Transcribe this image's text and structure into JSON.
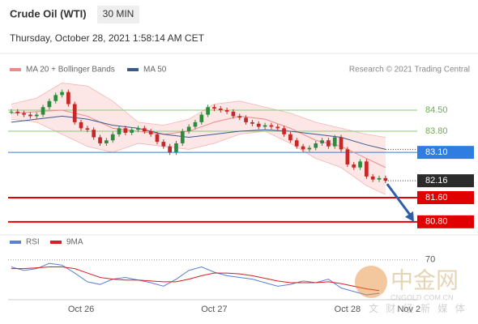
{
  "watermark": {
    "name": "中金网",
    "site": "CNGOLD.COM.CN",
    "slogan": "文 财 经 新 媒 体"
  },
  "chart_data": [
    {
      "type": "candlestick",
      "title": "Crude Oil (WTI)",
      "interval": "30 MIN",
      "subtitle": "Thursday, October 28, 2021 1:58:14 AM CET",
      "credit": "Research © 2021 Trading Central",
      "up_color": "#2e8b3e",
      "down_color": "#c62828",
      "xlim": [
        -0.5,
        64
      ],
      "xticks": [
        {
          "value": 11,
          "label": "Oct 26"
        },
        {
          "value": 32,
          "label": "Oct 27"
        },
        {
          "value": 53,
          "label": "Oct 28"
        },
        {
          "value": 62.7,
          "label": "Nov 2"
        }
      ],
      "ylim": [
        80.5,
        85.6
      ],
      "close": [
        84.45,
        84.4,
        84.35,
        84.3,
        84.35,
        84.6,
        84.8,
        85.0,
        85.1,
        84.7,
        84.1,
        83.9,
        83.85,
        83.6,
        83.4,
        83.5,
        83.7,
        83.9,
        83.75,
        83.85,
        83.9,
        83.8,
        83.7,
        83.45,
        83.3,
        83.1,
        83.4,
        83.8,
        83.95,
        84.1,
        84.35,
        84.6,
        84.55,
        84.5,
        84.45,
        84.3,
        84.25,
        84.1,
        84.05,
        83.95,
        84.0,
        83.95,
        83.9,
        83.7,
        83.5,
        83.3,
        83.2,
        83.25,
        83.4,
        83.5,
        83.3,
        83.6,
        83.2,
        82.7,
        82.6,
        82.8,
        82.3,
        82.2,
        82.25,
        82.16
      ],
      "series": [
        {
          "name": "MA 20 + Bollinger Bands",
          "color": "#f08a8a",
          "x": [
            0,
            4,
            8,
            12,
            16,
            20,
            24,
            28,
            32,
            36,
            40,
            44,
            48,
            52,
            56,
            59
          ],
          "values": [
            84.4,
            84.45,
            84.5,
            84.3,
            83.9,
            83.8,
            83.7,
            83.8,
            84.1,
            84.3,
            84.2,
            83.9,
            83.5,
            83.3,
            82.9,
            82.6
          ],
          "upper": [
            84.7,
            84.9,
            85.4,
            85.3,
            84.8,
            84.1,
            84.0,
            84.2,
            84.7,
            84.8,
            84.6,
            84.4,
            84.1,
            83.9,
            83.7,
            83.6
          ],
          "lower": [
            84.2,
            84.1,
            83.7,
            83.3,
            83.1,
            83.4,
            83.3,
            83.2,
            83.4,
            83.7,
            83.8,
            83.4,
            82.9,
            82.6,
            82.0,
            81.7
          ]
        },
        {
          "name": "MA 50",
          "color": "#3a5a8c",
          "x": [
            0,
            4,
            8,
            12,
            16,
            20,
            24,
            28,
            32,
            36,
            40,
            44,
            48,
            52,
            56,
            59
          ],
          "values": [
            84.1,
            84.2,
            84.3,
            84.2,
            84.0,
            83.9,
            83.7,
            83.6,
            83.7,
            83.8,
            83.85,
            83.8,
            83.7,
            83.6,
            83.35,
            83.2
          ]
        }
      ],
      "levels": [
        {
          "value": 84.5,
          "label": "84.50",
          "color": "#8cc97a",
          "box": false
        },
        {
          "value": 83.8,
          "label": "83.80",
          "color": "#8cc97a",
          "box": false
        },
        {
          "value": 83.1,
          "label": "83.10",
          "color": "#2f7de1",
          "box": true
        },
        {
          "value": 82.16,
          "label": "82.16",
          "color": "#2b2b2b",
          "box": true
        },
        {
          "value": 81.6,
          "label": "81.60",
          "color": "#e00000",
          "box": true
        },
        {
          "value": 80.8,
          "label": "80.80",
          "color": "#e00000",
          "box": true
        }
      ]
    },
    {
      "type": "line",
      "xlim": [
        -0.5,
        64
      ],
      "ylim": [
        20,
        80
      ],
      "yticks": [
        70
      ],
      "x": [
        0,
        2,
        4,
        6,
        8,
        10,
        12,
        14,
        16,
        18,
        20,
        22,
        24,
        26,
        28,
        30,
        32,
        34,
        36,
        38,
        40,
        42,
        44,
        46,
        48,
        50,
        52,
        54,
        56,
        58
      ],
      "series": [
        {
          "name": "RSI",
          "color": "#5b7fd6",
          "values": [
            62,
            58,
            60,
            66,
            64,
            55,
            45,
            42,
            48,
            50,
            47,
            44,
            40,
            48,
            58,
            62,
            56,
            52,
            50,
            48,
            44,
            40,
            42,
            46,
            44,
            48,
            38,
            34,
            30,
            32
          ]
        },
        {
          "name": "9MA",
          "color": "#d42020",
          "values": [
            60,
            60,
            61,
            62,
            62,
            60,
            55,
            50,
            48,
            47,
            47,
            46,
            45,
            45,
            48,
            52,
            55,
            55,
            54,
            52,
            49,
            46,
            44,
            44,
            44,
            45,
            43,
            40,
            37,
            35
          ]
        }
      ]
    }
  ]
}
